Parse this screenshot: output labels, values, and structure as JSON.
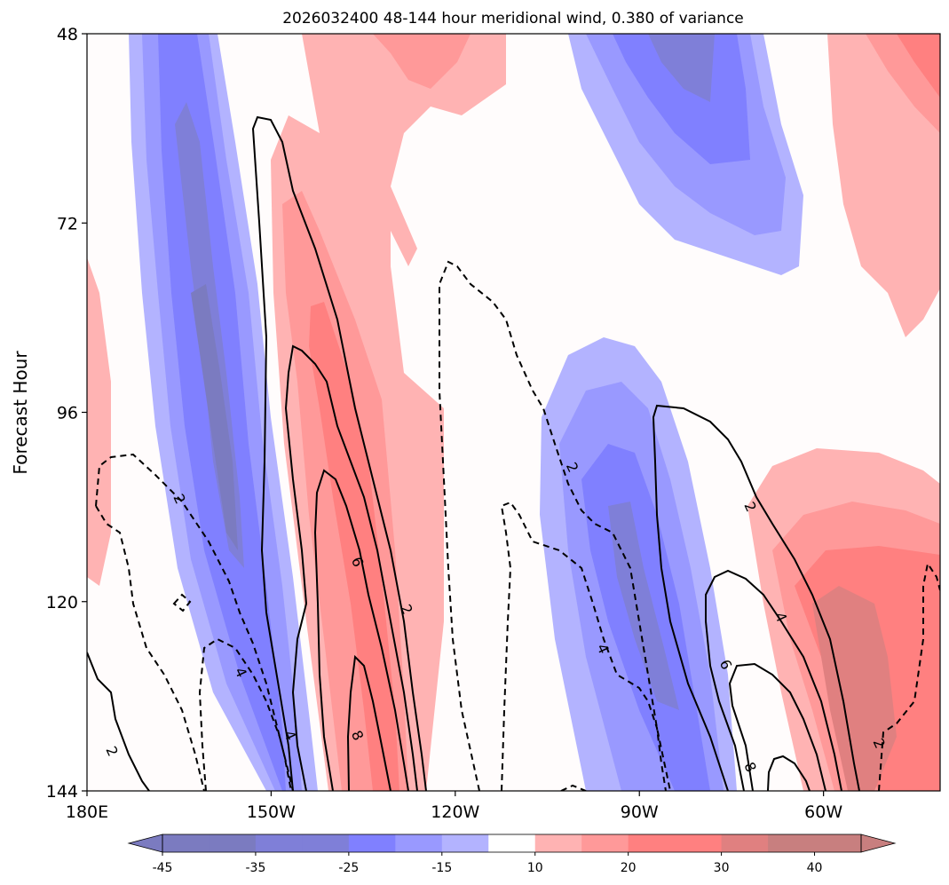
{
  "chart_data": {
    "type": "heatmap",
    "title": "2026032400 48-144 hour meridional wind, 0.380 of variance",
    "xlabel": "",
    "ylabel": "Forecast Hour",
    "x_ticks": [
      "180E",
      "150W",
      "120W",
      "90W",
      "60W"
    ],
    "x_tick_values": [
      -180,
      -150,
      -120,
      -90,
      -60
    ],
    "y_ticks": [
      "48",
      "72",
      "96",
      "120",
      "144"
    ],
    "y_tick_values": [
      48,
      72,
      96,
      120,
      144
    ],
    "xlim": [
      -180,
      -41
    ],
    "ylim": [
      48,
      144
    ],
    "colorbar": {
      "ticks": [
        "-45",
        "-35",
        "-25",
        "-15",
        "10",
        "20",
        "30",
        "40"
      ],
      "levels": [
        -45,
        -40,
        -35,
        -30,
        -25,
        -20,
        -15,
        -10,
        10,
        15,
        20,
        25,
        30,
        35,
        40,
        45
      ],
      "colors": [
        "#7b7bc0",
        "#7f7fd8",
        "#8080ff",
        "#9999ff",
        "#b3b3ff",
        "#ffffff",
        "#ffb3b3",
        "#ff9999",
        "#ff8080",
        "#e08080",
        "#c87f7f"
      ],
      "extend": "both"
    },
    "contour_labels": [
      {
        "text": "2",
        "lon": -165,
        "hour": 107
      },
      {
        "text": "4",
        "lon": -155,
        "hour": 129
      },
      {
        "text": "4",
        "lon": -147,
        "hour": 137
      },
      {
        "text": "6",
        "lon": -136,
        "hour": 115
      },
      {
        "text": "8",
        "lon": -136,
        "hour": 137
      },
      {
        "text": "2",
        "lon": -128,
        "hour": 121
      },
      {
        "text": "2",
        "lon": -176,
        "hour": 139
      },
      {
        "text": "2",
        "lon": -101,
        "hour": 103
      },
      {
        "text": "4",
        "lon": -96,
        "hour": 126
      },
      {
        "text": "2",
        "lon": -72,
        "hour": 108
      },
      {
        "text": "4",
        "lon": -67,
        "hour": 122
      },
      {
        "text": "6",
        "lon": -76,
        "hour": 128
      },
      {
        "text": "8",
        "lon": -72,
        "hour": 141
      },
      {
        "text": "2",
        "lon": -51,
        "hour": 138
      }
    ]
  }
}
